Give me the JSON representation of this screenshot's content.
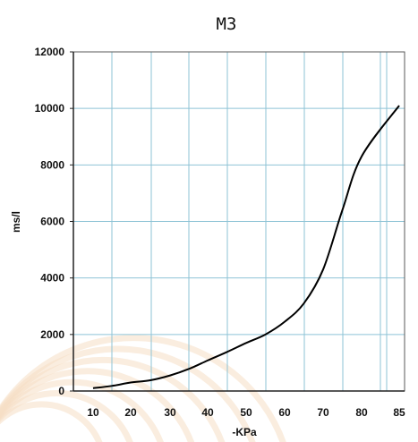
{
  "chart_data": {
    "type": "line",
    "title": "M3",
    "xlabel": "-KPa",
    "ylabel": "ms/l",
    "xticks": [
      "10",
      "20",
      "30",
      "40",
      "50",
      "60",
      "70",
      "80",
      "85"
    ],
    "yticks": [
      "0",
      "2000",
      "4000",
      "6000",
      "8000",
      "10000",
      "12000"
    ],
    "ylim": [
      0,
      12000
    ],
    "grid": true,
    "legend": "none",
    "series": [
      {
        "x": [
          10,
          15,
          20,
          25,
          30,
          35,
          40,
          45,
          50,
          55,
          60,
          65,
          70,
          75,
          80,
          85
        ],
        "y": [
          100,
          180,
          300,
          380,
          550,
          780,
          1080,
          1380,
          1700,
          2000,
          2450,
          3100,
          4300,
          6400,
          8300,
          10100
        ]
      }
    ],
    "colors": {
      "grid": "#8ec3d6",
      "frame": "#5a5a5a",
      "line": "#000000",
      "watermark": "#f5dfc4"
    }
  }
}
